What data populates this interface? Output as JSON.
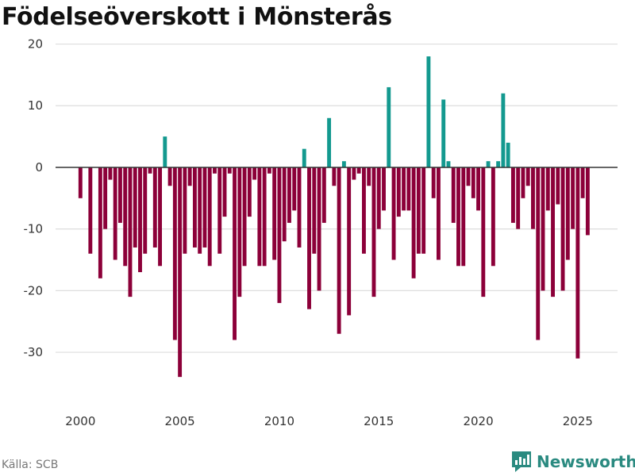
{
  "chart_data": {
    "type": "bar",
    "title": "Födelseöverskott i Mönsterås",
    "xlabel": "",
    "ylabel": "",
    "x_ticks": [
      2000,
      2005,
      2010,
      2015,
      2020,
      2025
    ],
    "y_ticks": [
      20,
      10,
      0,
      -10,
      -20,
      -30
    ],
    "xlim": [
      1999.15,
      2027
    ],
    "ylim": [
      -39,
      22
    ],
    "grid": true,
    "frequency": "quarterly",
    "start_year": 2000,
    "colors": {
      "positive": "#13998f",
      "negative": "#8c0039",
      "grid": "#dddddd",
      "zero_line": "#333333"
    },
    "values": [
      -5,
      0,
      -14,
      0,
      -18,
      -10,
      -2,
      -15,
      -9,
      -16,
      -21,
      -13,
      -17,
      -14,
      -1,
      -13,
      -16,
      5,
      -3,
      -28,
      -34,
      -14,
      -3,
      -13,
      -14,
      -13,
      -16,
      -1,
      -14,
      -8,
      -1,
      -28,
      -21,
      -16,
      -8,
      -2,
      -16,
      -16,
      -1,
      -15,
      -22,
      -12,
      -9,
      -7,
      -13,
      3,
      -23,
      -14,
      -20,
      -9,
      8,
      -3,
      -27,
      1,
      -24,
      -2,
      -1,
      -14,
      -3,
      -21,
      -10,
      -7,
      13,
      -15,
      -8,
      -7,
      -7,
      -18,
      -14,
      -14,
      18,
      -5,
      -15,
      11,
      1,
      -9,
      -16,
      -16,
      -3,
      -5,
      -7,
      -21,
      1,
      -16,
      1,
      12,
      4,
      -9,
      -10,
      -5,
      -3,
      -10,
      -28,
      -20,
      -7,
      -21,
      -6,
      -20,
      -15,
      -10,
      -31,
      -5,
      -11
    ]
  },
  "source": "Källa: SCB",
  "brand": {
    "name": "Newsworthy"
  }
}
